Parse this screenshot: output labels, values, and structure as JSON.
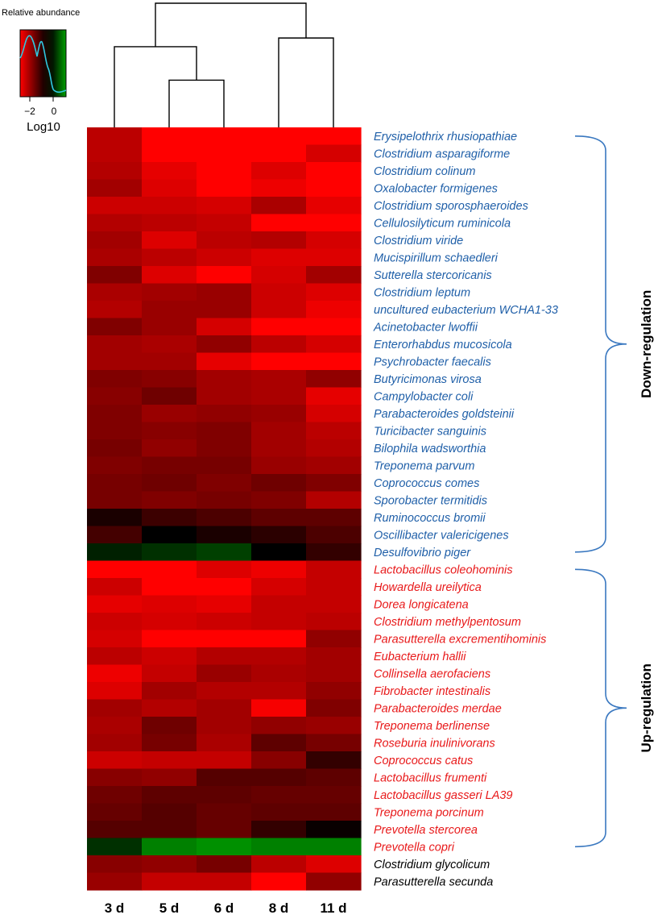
{
  "legend": {
    "title": "Relative abundance",
    "ticks": [
      "−2",
      "0"
    ],
    "axis_label": "Log10"
  },
  "chart_data": {
    "type": "heatmap",
    "columns": [
      "3 d",
      "5 d",
      "6 d",
      "8 d",
      "11 d"
    ],
    "colors": {
      "low": "#ff0000",
      "mid": "#000000",
      "high": "#00a000",
      "down_label": "#1f5fa8",
      "up_label": "#e8191a",
      "other_label": "#000000",
      "dendrogram": "#000000",
      "bracket": "#3a78c0",
      "legend_curve": "#30c8e0"
    },
    "value_range": [
      -3,
      1
    ],
    "rows": [
      {
        "name": "Erysipelothrix rhusiopathiae",
        "group": "down",
        "values": [
          -2.2,
          -3.0,
          -3.0,
          -3.0,
          -3.0
        ]
      },
      {
        "name": "Clostridium asparagiforme",
        "group": "down",
        "values": [
          -2.2,
          -3.0,
          -3.0,
          -3.0,
          -2.5
        ]
      },
      {
        "name": "Clostridium colinum",
        "group": "down",
        "values": [
          -2.1,
          -2.7,
          -3.0,
          -2.6,
          -3.0
        ]
      },
      {
        "name": "Oxalobacter formigenes",
        "group": "down",
        "values": [
          -1.9,
          -2.6,
          -3.0,
          -2.8,
          -3.0
        ]
      },
      {
        "name": "Clostridium sporosphaeroides",
        "group": "down",
        "values": [
          -2.4,
          -2.4,
          -2.5,
          -2.0,
          -2.7
        ]
      },
      {
        "name": "Cellulosilyticum ruminicola",
        "group": "down",
        "values": [
          -2.1,
          -2.2,
          -2.3,
          -3.0,
          -3.0
        ]
      },
      {
        "name": "Clostridium viride",
        "group": "down",
        "values": [
          -1.9,
          -2.6,
          -2.2,
          -2.1,
          -2.5
        ]
      },
      {
        "name": "Mucispirillum schaedleri",
        "group": "down",
        "values": [
          -2.0,
          -2.2,
          -2.4,
          -2.6,
          -2.6
        ]
      },
      {
        "name": "Sutterella stercoricanis",
        "group": "down",
        "values": [
          -1.5,
          -2.6,
          -3.0,
          -2.5,
          -1.9
        ]
      },
      {
        "name": "Clostridium leptum",
        "group": "down",
        "values": [
          -2.0,
          -1.9,
          -1.8,
          -2.4,
          -2.6
        ]
      },
      {
        "name": "uncultured eubacterium WCHA1-33",
        "group": "down",
        "values": [
          -2.1,
          -1.8,
          -1.8,
          -2.4,
          -2.8
        ]
      },
      {
        "name": "Acinetobacter lwoffii",
        "group": "down",
        "values": [
          -1.5,
          -1.8,
          -2.5,
          -3.0,
          -3.0
        ]
      },
      {
        "name": "Enterorhabdus mucosicola",
        "group": "down",
        "values": [
          -1.9,
          -2.0,
          -1.7,
          -2.2,
          -2.5
        ]
      },
      {
        "name": "Psychrobacter faecalis",
        "group": "down",
        "values": [
          -1.9,
          -1.9,
          -2.7,
          -3.0,
          -3.0
        ]
      },
      {
        "name": "Butyricimonas virosa",
        "group": "down",
        "values": [
          -1.5,
          -1.6,
          -1.9,
          -2.0,
          -1.7
        ]
      },
      {
        "name": "Campylobacter coli",
        "group": "down",
        "values": [
          -1.6,
          -1.3,
          -1.9,
          -2.0,
          -2.7
        ]
      },
      {
        "name": "Parabacteroides goldsteinii",
        "group": "down",
        "values": [
          -1.5,
          -1.8,
          -1.7,
          -1.8,
          -2.5
        ]
      },
      {
        "name": "Turicibacter sanguinis",
        "group": "down",
        "values": [
          -1.5,
          -1.6,
          -1.5,
          -1.9,
          -2.2
        ]
      },
      {
        "name": "Bilophila wadsworthia",
        "group": "down",
        "values": [
          -1.4,
          -1.7,
          -1.5,
          -1.9,
          -2.1
        ]
      },
      {
        "name": "Treponema parvum",
        "group": "down",
        "values": [
          -1.5,
          -1.4,
          -1.4,
          -1.8,
          -1.9
        ]
      },
      {
        "name": "Coprococcus comes",
        "group": "down",
        "values": [
          -1.4,
          -1.3,
          -1.5,
          -1.3,
          -1.5
        ]
      },
      {
        "name": "Sporobacter termitidis",
        "group": "down",
        "values": [
          -1.4,
          -1.5,
          -1.4,
          -1.5,
          -2.1
        ]
      },
      {
        "name": "Ruminococcus bromii",
        "group": "down",
        "values": [
          -0.3,
          -0.7,
          -0.9,
          -1.1,
          -1.1
        ]
      },
      {
        "name": "Oscillibacter valericigenes",
        "group": "down",
        "values": [
          -0.8,
          0.0,
          -0.3,
          -0.5,
          -0.9
        ]
      },
      {
        "name": "Desulfovibrio piger",
        "group": "down",
        "values": [
          0.2,
          0.3,
          0.4,
          0.0,
          -0.6
        ]
      },
      {
        "name": "Lactobacillus coleohominis",
        "group": "up",
        "values": [
          -3.0,
          -3.0,
          -2.6,
          -2.8,
          -2.3
        ]
      },
      {
        "name": "Howardella ureilytica",
        "group": "up",
        "values": [
          -2.4,
          -3.0,
          -3.0,
          -2.5,
          -2.3
        ]
      },
      {
        "name": "Dorea longicatena",
        "group": "up",
        "values": [
          -2.7,
          -2.6,
          -2.7,
          -2.3,
          -2.3
        ]
      },
      {
        "name": "Clostridium methylpentosum",
        "group": "up",
        "values": [
          -2.4,
          -2.5,
          -2.4,
          -2.3,
          -2.2
        ]
      },
      {
        "name": "Parasutterella excrementihominis",
        "group": "up",
        "values": [
          -2.5,
          -3.0,
          -3.0,
          -3.0,
          -1.7
        ]
      },
      {
        "name": "Eubacterium hallii",
        "group": "up",
        "values": [
          -2.2,
          -2.4,
          -2.1,
          -2.1,
          -1.9
        ]
      },
      {
        "name": "Collinsella aerofaciens",
        "group": "up",
        "values": [
          -2.8,
          -2.3,
          -1.8,
          -2.0,
          -1.9
        ]
      },
      {
        "name": "Fibrobacter intestinalis",
        "group": "up",
        "values": [
          -2.6,
          -1.9,
          -2.1,
          -2.1,
          -1.7
        ]
      },
      {
        "name": "Parabacteroides merdae",
        "group": "up",
        "values": [
          -1.9,
          -2.1,
          -1.9,
          -2.9,
          -1.5
        ]
      },
      {
        "name": "Treponema berlinense",
        "group": "up",
        "values": [
          -2.0,
          -1.3,
          -1.9,
          -1.7,
          -1.8
        ]
      },
      {
        "name": "Roseburia inulinivorans",
        "group": "up",
        "values": [
          -1.9,
          -1.4,
          -2.0,
          -1.1,
          -1.4
        ]
      },
      {
        "name": "Coprococcus catus",
        "group": "up",
        "values": [
          -2.4,
          -2.3,
          -2.3,
          -1.6,
          -0.6
        ]
      },
      {
        "name": "Lactobacillus frumenti",
        "group": "up",
        "values": [
          -1.6,
          -1.7,
          -1.0,
          -1.0,
          -1.1
        ]
      },
      {
        "name": "Lactobacillus gasseri LA39",
        "group": "up",
        "values": [
          -1.3,
          -1.1,
          -1.1,
          -1.2,
          -1.2
        ]
      },
      {
        "name": "Treponema porcinum",
        "group": "up",
        "values": [
          -1.2,
          -1.0,
          -1.2,
          -1.1,
          -1.1
        ]
      },
      {
        "name": "Prevotella stercorea",
        "group": "up",
        "values": [
          -1.0,
          -1.0,
          -1.2,
          -0.6,
          -0.1
        ]
      },
      {
        "name": "Prevotella copri",
        "group": "up",
        "values": [
          0.3,
          0.8,
          0.9,
          0.8,
          0.8
        ]
      },
      {
        "name": "Clostridium glycolicum",
        "group": "other",
        "values": [
          -1.6,
          -1.7,
          -1.4,
          -2.2,
          -2.6
        ]
      },
      {
        "name": "Parasutterella secunda",
        "group": "other",
        "values": [
          -1.8,
          -2.3,
          -2.3,
          -3.0,
          -1.7
        ]
      }
    ],
    "groups": [
      {
        "id": "down",
        "label": "Down-regulation",
        "first_row": 0,
        "last_row": 24
      },
      {
        "id": "up",
        "label": "Up-regulation",
        "first_row": 25,
        "last_row": 41
      }
    ],
    "dendrogram": {
      "merges": [
        {
          "left": "col:1",
          "right": "col:2",
          "height": 0.38
        },
        {
          "left": "merge:0",
          "right": "col:0",
          "height": 0.65
        },
        {
          "left": "col:3",
          "right": "col:4",
          "height": 0.72
        },
        {
          "left": "merge:1",
          "right": "merge:2",
          "height": 1.0
        }
      ]
    }
  }
}
